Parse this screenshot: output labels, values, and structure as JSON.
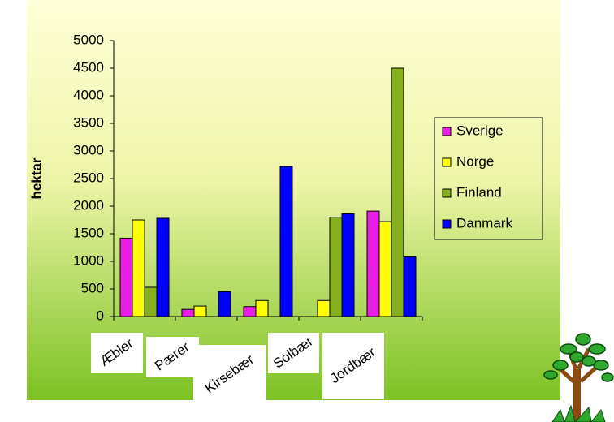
{
  "chart_data": {
    "type": "bar",
    "y_label": "hektar",
    "categories": [
      "Æbler",
      "Pærer",
      "Kirsebær",
      "Solbær",
      "Jordbær"
    ],
    "series": [
      {
        "name": "Sverige",
        "color": "#e81ee8",
        "values": [
          1420,
          130,
          180,
          0,
          1910
        ]
      },
      {
        "name": "Norge",
        "color": "#ffff00",
        "values": [
          1750,
          190,
          290,
          290,
          1720
        ]
      },
      {
        "name": "Finland",
        "color": "#86b01c",
        "values": [
          530,
          0,
          0,
          1800,
          4500
        ]
      },
      {
        "name": "Danmark",
        "color": "#0000ff",
        "values": [
          1780,
          450,
          2720,
          1860,
          1080
        ]
      }
    ],
    "ylim": [
      0,
      5000
    ],
    "yticks": [
      0,
      500,
      1000,
      1500,
      2000,
      2500,
      3000,
      3500,
      4000,
      4500,
      5000
    ],
    "grid": false,
    "legend": "right"
  }
}
